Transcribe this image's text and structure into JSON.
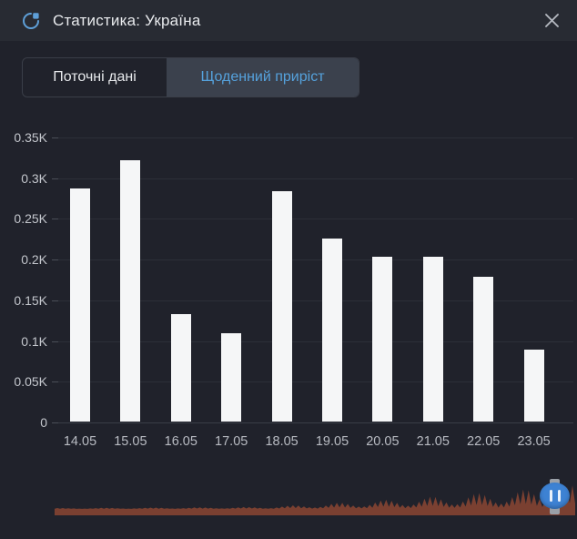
{
  "header": {
    "title": "Статистика: Україна",
    "icon": "pie-chart",
    "close_glyph": "✕"
  },
  "tabs": [
    {
      "label": "Поточні дані",
      "active": false
    },
    {
      "label": "Щоденний приріст",
      "active": true
    }
  ],
  "chart_data": {
    "type": "bar",
    "title": "",
    "xlabel": "",
    "ylabel": "",
    "categories": [
      "14.05",
      "15.05",
      "16.05",
      "17.05",
      "18.05",
      "19.05",
      "20.05",
      "21.05",
      "22.05",
      "23.05"
    ],
    "values": [
      287,
      322,
      133,
      110,
      284,
      226,
      203,
      203,
      179,
      89
    ],
    "ylim": [
      0,
      350
    ],
    "ytick_values": [
      0,
      50,
      100,
      150,
      200,
      250,
      300,
      350
    ],
    "ytick_labels": [
      "0",
      "0.05K",
      "0.1K",
      "0.15K",
      "0.2K",
      "0.25K",
      "0.3K",
      "0.35K"
    ],
    "grid": "horizontal",
    "legend": "none",
    "bar_color": "#f5f6f7"
  },
  "timeline": {
    "wave_color": "#7a4031",
    "handle_track_color": "#9aa0a8",
    "handle_color": "#3d82d3",
    "handle_icon": "pause-icon"
  },
  "colors": {
    "window_bg": "#20222b",
    "header_bg": "#282b33",
    "accent_blue": "#55a2dd",
    "grid_line": "#2c2f38",
    "axis_label": "#c3c6cc"
  }
}
